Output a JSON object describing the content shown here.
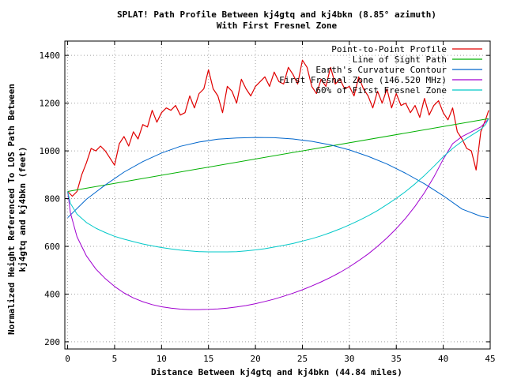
{
  "chart_data": {
    "type": "line",
    "title": "SPLAT! Path Profile Between kj4gtq and kj4bkn (8.85° azimuth)",
    "subtitle": "With First Fresnel Zone",
    "xlabel": "Distance Between kj4gtq and kj4bkn (44.84 miles)",
    "ylabel": [
      "Normalized Height Referenced To LOS Path Between",
      "kj4gtq and kj4bkn (feet)"
    ],
    "xlim": [
      -0.3,
      45
    ],
    "ylim": [
      170,
      1460
    ],
    "xticks": [
      "0",
      "5",
      "10",
      "15",
      "20",
      "25",
      "30",
      "35",
      "40",
      "45"
    ],
    "yticks": [
      "200",
      "400",
      "600",
      "800",
      "1000",
      "1200",
      "1400"
    ],
    "grid": true,
    "legend_position": "top-right",
    "series": [
      {
        "name": "Point-to-Point Profile",
        "color": "#e00000",
        "x": [
          0,
          0.5,
          1,
          1.5,
          2,
          2.5,
          3,
          3.5,
          4,
          4.5,
          5,
          5.5,
          6,
          6.5,
          7,
          7.5,
          8,
          8.5,
          9,
          9.5,
          10,
          10.5,
          11,
          11.5,
          12,
          12.5,
          13,
          13.5,
          14,
          14.5,
          15,
          15.5,
          16,
          16.5,
          17,
          17.5,
          18,
          18.5,
          19,
          19.5,
          20,
          20.5,
          21,
          21.5,
          22,
          22.5,
          23,
          23.5,
          24,
          24.5,
          25,
          25.5,
          26,
          26.5,
          27,
          27.5,
          28,
          28.5,
          29,
          29.5,
          30,
          30.5,
          31,
          31.5,
          32,
          32.5,
          33,
          33.5,
          34,
          34.5,
          35,
          35.5,
          36,
          36.5,
          37,
          37.5,
          38,
          38.5,
          39,
          39.5,
          40,
          40.5,
          41,
          41.5,
          42,
          42.5,
          43,
          43.5,
          44,
          44.5,
          44.84
        ],
        "y": [
          830,
          810,
          830,
          900,
          950,
          1010,
          1000,
          1020,
          1000,
          970,
          940,
          1030,
          1060,
          1020,
          1080,
          1050,
          1110,
          1100,
          1170,
          1120,
          1160,
          1180,
          1170,
          1190,
          1150,
          1160,
          1230,
          1180,
          1240,
          1260,
          1340,
          1260,
          1230,
          1160,
          1270,
          1250,
          1200,
          1300,
          1260,
          1230,
          1270,
          1290,
          1310,
          1270,
          1330,
          1290,
          1280,
          1350,
          1320,
          1280,
          1380,
          1350,
          1270,
          1240,
          1300,
          1270,
          1350,
          1280,
          1300,
          1260,
          1270,
          1230,
          1310,
          1260,
          1230,
          1180,
          1250,
          1200,
          1260,
          1180,
          1240,
          1190,
          1200,
          1160,
          1190,
          1140,
          1220,
          1150,
          1190,
          1210,
          1160,
          1130,
          1180,
          1080,
          1050,
          1010,
          1000,
          920,
          1080,
          1130,
          1170
        ],
        "width": 1.2
      },
      {
        "name": "Line of Sight Path",
        "color": "#00b000",
        "x": [
          0,
          44.84
        ],
        "y": [
          830,
          1135
        ],
        "width": 1
      },
      {
        "name": "Earth's Curvature Contour",
        "color": "#0066cc",
        "x": [
          0,
          2,
          4,
          6,
          8,
          10,
          12,
          14,
          16,
          18,
          20,
          22,
          24,
          26,
          28,
          30,
          32,
          34,
          36,
          38,
          40,
          42,
          44,
          44.84
        ],
        "y": [
          720,
          797,
          857,
          911,
          955,
          991,
          1019,
          1037,
          1049,
          1054,
          1056,
          1055,
          1050,
          1040,
          1025,
          1004,
          977,
          945,
          906,
          862,
          812,
          756,
          726,
          720
        ],
        "width": 1
      },
      {
        "name": "First Fresnel Zone (146.520 MHz)",
        "color": "#a000d0",
        "x": [
          0,
          0.3,
          1,
          2,
          3,
          4,
          5,
          6,
          7,
          8,
          9,
          10,
          11,
          12,
          13,
          14,
          15,
          16,
          17,
          18,
          19,
          20,
          21,
          22,
          23,
          24,
          25,
          26,
          27,
          28,
          29,
          30,
          31,
          32,
          33,
          34,
          35,
          36,
          37,
          38,
          39,
          40,
          41,
          42,
          43,
          44,
          44.5,
          44.84
        ],
        "y": [
          830,
          740,
          640,
          560,
          505,
          465,
          432,
          405,
          384,
          368,
          356,
          347,
          341,
          337,
          335,
          335,
          336,
          338,
          341,
          346,
          352,
          360,
          369,
          379,
          391,
          404,
          418,
          434,
          451,
          470,
          491,
          514,
          540,
          568,
          600,
          635,
          674,
          718,
          768,
          825,
          890,
          965,
          1030,
          1060,
          1080,
          1100,
          1120,
          1135
        ],
        "width": 1
      },
      {
        "name": "60% of First Fresnel Zone",
        "color": "#00c8c8",
        "x": [
          0,
          0.3,
          1,
          2,
          3,
          4,
          5,
          6,
          7,
          8,
          9,
          10,
          11,
          12,
          13,
          14,
          15,
          16,
          17,
          18,
          19,
          20,
          21,
          22,
          23,
          24,
          25,
          26,
          27,
          28,
          29,
          30,
          31,
          32,
          33,
          34,
          35,
          36,
          37,
          38,
          39,
          40,
          41,
          42,
          43,
          44,
          44.5,
          44.84
        ],
        "y": [
          830,
          780,
          735,
          700,
          676,
          658,
          642,
          630,
          620,
          610,
          602,
          595,
          589,
          584,
          581,
          578,
          577,
          577,
          577,
          578,
          581,
          585,
          590,
          597,
          604,
          612,
          622,
          632,
          644,
          658,
          673,
          690,
          708,
          728,
          750,
          775,
          801,
          830,
          862,
          897,
          935,
          975,
          1010,
          1040,
          1065,
          1090,
          1110,
          1135
        ],
        "width": 1
      }
    ]
  }
}
